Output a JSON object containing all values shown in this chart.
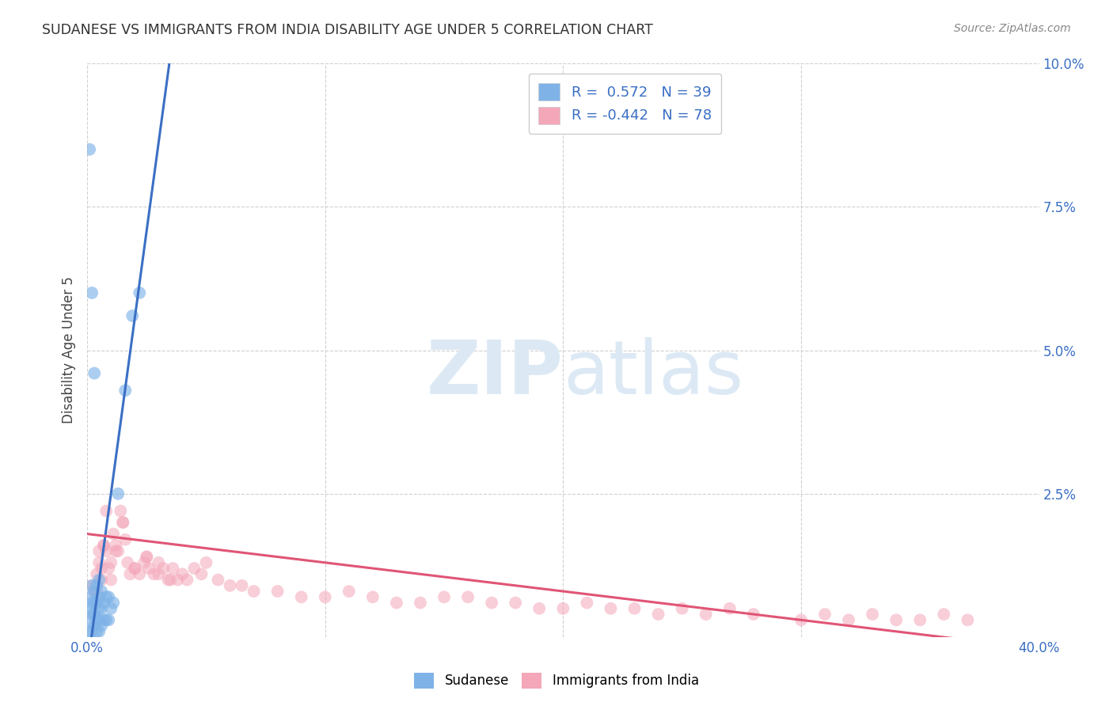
{
  "title": "SUDANESE VS IMMIGRANTS FROM INDIA DISABILITY AGE UNDER 5 CORRELATION CHART",
  "source": "Source: ZipAtlas.com",
  "ylabel": "Disability Age Under 5",
  "xlim": [
    0.0,
    0.4
  ],
  "ylim": [
    0.0,
    0.1
  ],
  "xticks": [
    0.0,
    0.1,
    0.2,
    0.3,
    0.4
  ],
  "xtick_labels": [
    "0.0%",
    "",
    "",
    "",
    "40.0%"
  ],
  "yticks": [
    0.0,
    0.025,
    0.05,
    0.075,
    0.1
  ],
  "ytick_labels": [
    "",
    "2.5%",
    "5.0%",
    "7.5%",
    "10.0%"
  ],
  "blue_R": 0.572,
  "blue_N": 39,
  "pink_R": -0.442,
  "pink_N": 78,
  "blue_color": "#7fb3e8",
  "pink_color": "#f4a7b9",
  "blue_line_color": "#3a6fc4",
  "pink_line_color": "#e05575",
  "watermark_zip": "ZIP",
  "watermark_atlas": "atlas",
  "watermark_color": "#dce9f5",
  "background_color": "#ffffff",
  "grid_color": "#d0d0d0",
  "blue_line_x": [
    0.0018,
    0.0355
  ],
  "blue_line_y": [
    0.0,
    0.103
  ],
  "pink_line_x": [
    0.0,
    0.4
  ],
  "pink_line_y": [
    0.018,
    -0.002
  ],
  "blue_scatter_x": [
    0.001,
    0.001,
    0.001,
    0.001,
    0.002,
    0.002,
    0.002,
    0.002,
    0.003,
    0.003,
    0.003,
    0.003,
    0.004,
    0.004,
    0.004,
    0.004,
    0.005,
    0.005,
    0.005,
    0.005,
    0.005,
    0.006,
    0.006,
    0.006,
    0.007,
    0.007,
    0.008,
    0.008,
    0.009,
    0.009,
    0.01,
    0.011,
    0.013,
    0.016,
    0.019,
    0.022,
    0.001,
    0.002,
    0.003
  ],
  "blue_scatter_y": [
    0.001,
    0.003,
    0.005,
    0.007,
    0.001,
    0.004,
    0.006,
    0.009,
    0.002,
    0.004,
    0.006,
    0.008,
    0.001,
    0.003,
    0.006,
    0.009,
    0.001,
    0.003,
    0.005,
    0.007,
    0.01,
    0.002,
    0.005,
    0.008,
    0.003,
    0.006,
    0.003,
    0.007,
    0.003,
    0.007,
    0.005,
    0.006,
    0.025,
    0.043,
    0.056,
    0.06,
    0.085,
    0.06,
    0.046
  ],
  "pink_scatter_x": [
    0.002,
    0.003,
    0.004,
    0.005,
    0.006,
    0.007,
    0.008,
    0.009,
    0.01,
    0.011,
    0.012,
    0.013,
    0.014,
    0.015,
    0.016,
    0.017,
    0.018,
    0.02,
    0.022,
    0.024,
    0.025,
    0.026,
    0.028,
    0.03,
    0.032,
    0.034,
    0.036,
    0.038,
    0.04,
    0.042,
    0.045,
    0.048,
    0.05,
    0.055,
    0.06,
    0.065,
    0.07,
    0.08,
    0.09,
    0.1,
    0.11,
    0.12,
    0.13,
    0.14,
    0.15,
    0.16,
    0.17,
    0.18,
    0.19,
    0.2,
    0.21,
    0.22,
    0.23,
    0.24,
    0.25,
    0.26,
    0.27,
    0.28,
    0.3,
    0.31,
    0.32,
    0.33,
    0.34,
    0.35,
    0.36,
    0.37,
    0.005,
    0.008,
    0.01,
    0.012,
    0.015,
    0.004,
    0.006,
    0.007,
    0.02,
    0.025,
    0.03,
    0.035
  ],
  "pink_scatter_y": [
    0.009,
    0.008,
    0.011,
    0.013,
    0.01,
    0.016,
    0.015,
    0.012,
    0.013,
    0.018,
    0.016,
    0.015,
    0.022,
    0.02,
    0.017,
    0.013,
    0.011,
    0.012,
    0.011,
    0.013,
    0.014,
    0.012,
    0.011,
    0.013,
    0.012,
    0.01,
    0.012,
    0.01,
    0.011,
    0.01,
    0.012,
    0.011,
    0.013,
    0.01,
    0.009,
    0.009,
    0.008,
    0.008,
    0.007,
    0.007,
    0.008,
    0.007,
    0.006,
    0.006,
    0.007,
    0.007,
    0.006,
    0.006,
    0.005,
    0.005,
    0.006,
    0.005,
    0.005,
    0.004,
    0.005,
    0.004,
    0.005,
    0.004,
    0.003,
    0.004,
    0.003,
    0.004,
    0.003,
    0.003,
    0.004,
    0.003,
    0.015,
    0.022,
    0.01,
    0.015,
    0.02,
    0.008,
    0.012,
    0.016,
    0.012,
    0.014,
    0.011,
    0.01
  ]
}
